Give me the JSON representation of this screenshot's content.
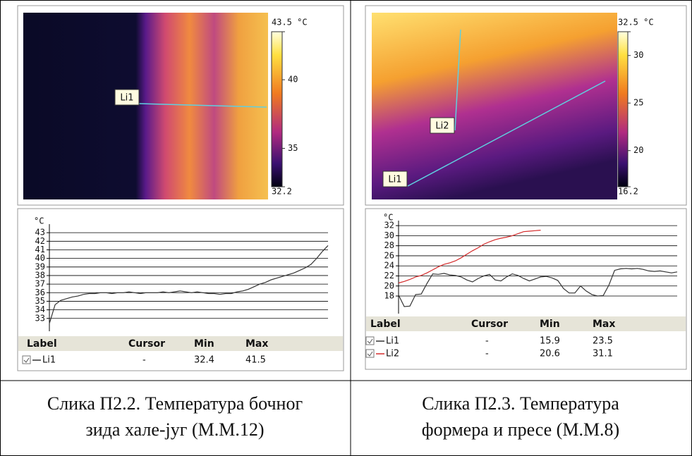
{
  "panels": [
    {
      "image": {
        "line_labels": [
          "Li1"
        ],
        "scale": {
          "lim": [
            32.2,
            43.5
          ],
          "ticks": [
            {
              "value": 43.5,
              "label": "43.5 °C"
            },
            40,
            35,
            32.2
          ]
        }
      },
      "table": {
        "header": [
          "Label",
          "Cursor",
          "Min",
          "Max"
        ],
        "rows": [
          {
            "cursor": "-",
            "min": 32.4,
            "max": 41.5
          }
        ]
      },
      "caption": [
        "Слика П2.2. Температура бочног",
        "зида хале-југ (М.М.12)"
      ]
    },
    {
      "image": {
        "line_labels": [
          "Li2",
          "Li1"
        ],
        "scale": {
          "lim": [
            16.2,
            32.5
          ],
          "ticks": [
            {
              "value": 32.5,
              "label": "32.5 °C"
            },
            30,
            25,
            20,
            16.2
          ]
        }
      },
      "table": {
        "header": [
          "Label",
          "Cursor",
          "Min",
          "Max"
        ],
        "rows": [
          {
            "cursor": "-",
            "min": 15.9,
            "max": 23.5
          },
          {
            "cursor": "-",
            "min": 20.6,
            "max": 31.1
          }
        ]
      },
      "caption": [
        "Слика П2.3. Температура",
        "формера и пресе (М.М.8)"
      ]
    }
  ],
  "chart_data": [
    {
      "type": "line",
      "y_unit": "°C",
      "ylim": [
        31.5,
        44
      ],
      "yticks": [
        33,
        34,
        35,
        36,
        37,
        38,
        39,
        40,
        41,
        42,
        43
      ],
      "grid": true,
      "series": [
        {
          "name": "Li1",
          "color": "#333333",
          "values": [
            32.4,
            34.6,
            35.1,
            35.3,
            35.5,
            35.6,
            35.8,
            35.9,
            35.9,
            36,
            36,
            35.9,
            36,
            36,
            36.1,
            36,
            35.9,
            36,
            36,
            36,
            36.1,
            36,
            36.1,
            36.2,
            36.1,
            36,
            36.1,
            36,
            35.9,
            35.9,
            35.8,
            35.9,
            35.9,
            36.1,
            36.2,
            36.4,
            36.7,
            37,
            37.2,
            37.5,
            37.7,
            37.9,
            38.1,
            38.3,
            38.6,
            38.9,
            39.3,
            40,
            40.8,
            41.5
          ]
        }
      ]
    },
    {
      "type": "line",
      "y_unit": "°C",
      "ylim": [
        14.5,
        33
      ],
      "yticks": [
        18,
        20,
        22,
        24,
        26,
        28,
        30,
        32
      ],
      "grid": true,
      "series": [
        {
          "name": "Li1",
          "color": "#333333",
          "values": [
            18.2,
            15.9,
            16,
            18.3,
            18.4,
            20.5,
            22.4,
            22.3,
            22.5,
            22.2,
            22.1,
            21.8,
            21.2,
            20.8,
            21.5,
            22,
            22.3,
            21.2,
            21,
            21.8,
            22.4,
            22.1,
            21.5,
            21,
            21.4,
            21.8,
            21.9,
            21.6,
            21.1,
            19.5,
            18.6,
            18.6,
            20,
            19,
            18.3,
            18,
            18.1,
            20.2,
            23.1,
            23.4,
            23.5,
            23.4,
            23.5,
            23.3,
            23,
            22.9,
            23,
            22.8,
            22.6,
            22.8
          ]
        },
        {
          "name": "Li2",
          "color": "#d42a2a",
          "values": [
            20.6,
            20.9,
            21.3,
            21.8,
            22.1,
            22.6,
            23.2,
            23.8,
            24.3,
            24.6,
            25,
            25.6,
            26.3,
            27,
            27.6,
            28.3,
            28.8,
            29.2,
            29.5,
            29.7,
            30,
            30.4,
            30.8,
            30.9,
            31,
            31.1,
            null,
            null,
            null,
            null,
            null,
            null,
            null,
            null,
            null,
            null,
            null,
            null,
            null,
            null,
            null,
            null,
            null,
            null,
            null,
            null,
            null,
            null,
            null,
            null
          ]
        }
      ]
    }
  ]
}
